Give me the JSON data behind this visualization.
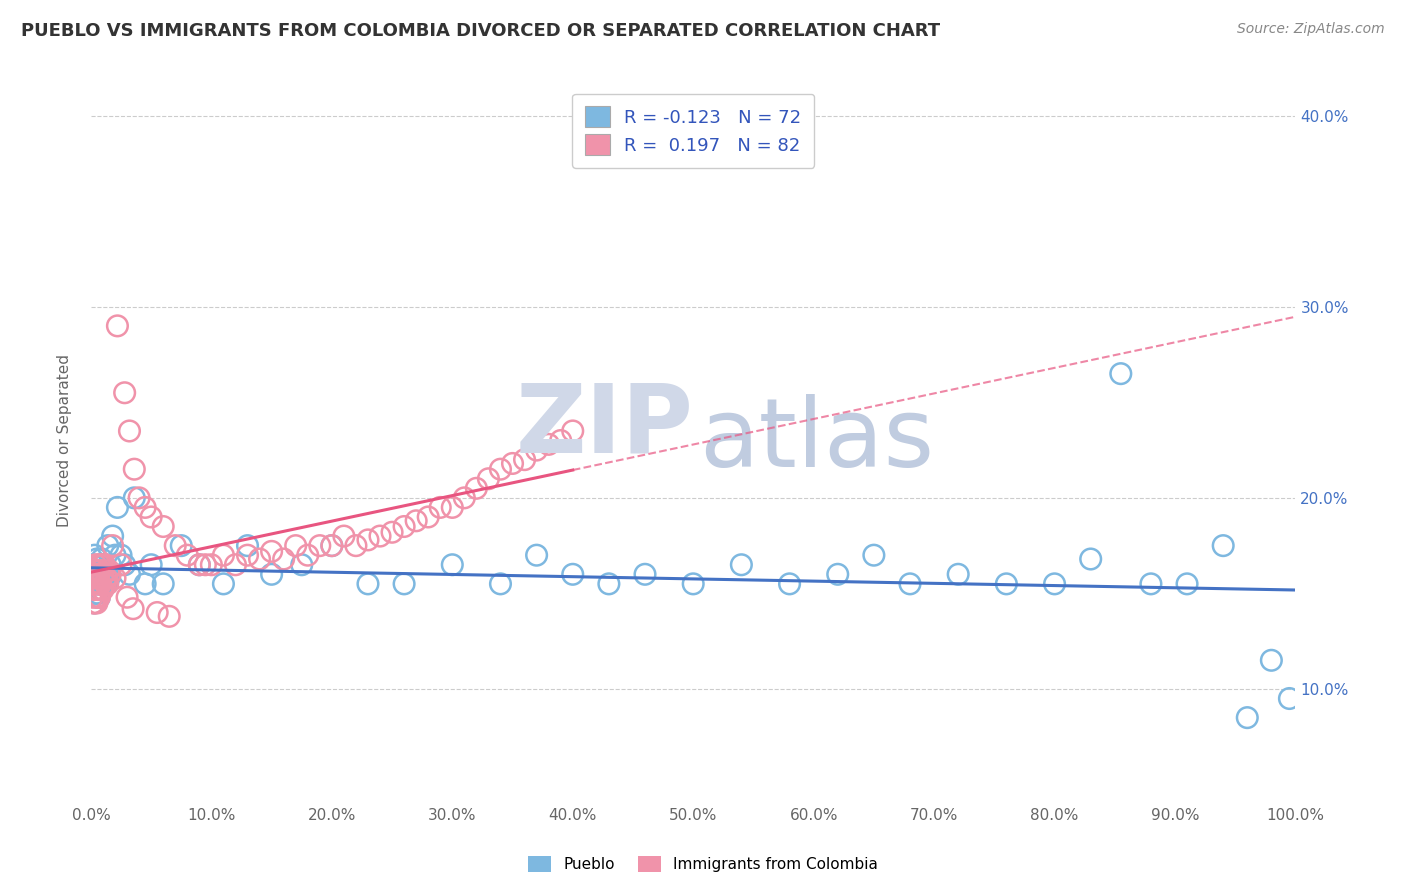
{
  "title": "PUEBLO VS IMMIGRANTS FROM COLOMBIA DIVORCED OR SEPARATED CORRELATION CHART",
  "source": "Source: ZipAtlas.com",
  "ylabel": "Divorced or Separated",
  "xlim": [
    0.0,
    1.0
  ],
  "ylim": [
    0.04,
    0.42
  ],
  "x_ticks": [
    0.0,
    0.1,
    0.2,
    0.3,
    0.4,
    0.5,
    0.6,
    0.7,
    0.8,
    0.9,
    1.0
  ],
  "y_ticks": [
    0.1,
    0.2,
    0.3,
    0.4
  ],
  "y_tick_labels": [
    "10.0%",
    "20.0%",
    "30.0%",
    "40.0%"
  ],
  "x_tick_labels": [
    "0.0%",
    "10.0%",
    "20.0%",
    "30.0%",
    "40.0%",
    "50.0%",
    "60.0%",
    "70.0%",
    "80.0%",
    "90.0%",
    "100.0%"
  ],
  "pueblo_R": -0.123,
  "pueblo_N": 72,
  "colombia_R": 0.197,
  "colombia_N": 82,
  "pueblo_color": "#7eb8e0",
  "colombia_color": "#f093aa",
  "pueblo_line_color": "#4472c4",
  "colombia_line_color": "#e85580",
  "legend_pueblo": "Pueblo",
  "legend_colombia": "Immigrants from Colombia",
  "watermark_zip_color": "#d0d8e8",
  "watermark_atlas_color": "#c0cce0",
  "pueblo_scatter_x": [
    0.001,
    0.002,
    0.002,
    0.003,
    0.003,
    0.003,
    0.004,
    0.004,
    0.004,
    0.005,
    0.005,
    0.005,
    0.006,
    0.006,
    0.006,
    0.007,
    0.007,
    0.007,
    0.008,
    0.008,
    0.009,
    0.009,
    0.01,
    0.01,
    0.011,
    0.012,
    0.013,
    0.014,
    0.015,
    0.016,
    0.018,
    0.02,
    0.022,
    0.025,
    0.028,
    0.032,
    0.036,
    0.045,
    0.05,
    0.06,
    0.075,
    0.09,
    0.11,
    0.13,
    0.15,
    0.175,
    0.2,
    0.23,
    0.26,
    0.3,
    0.34,
    0.37,
    0.4,
    0.43,
    0.46,
    0.5,
    0.54,
    0.58,
    0.62,
    0.65,
    0.68,
    0.72,
    0.76,
    0.8,
    0.83,
    0.855,
    0.88,
    0.91,
    0.94,
    0.96,
    0.98,
    0.995
  ],
  "pueblo_scatter_y": [
    0.165,
    0.16,
    0.155,
    0.17,
    0.158,
    0.145,
    0.162,
    0.155,
    0.15,
    0.168,
    0.155,
    0.148,
    0.162,
    0.158,
    0.15,
    0.165,
    0.155,
    0.148,
    0.16,
    0.152,
    0.168,
    0.155,
    0.162,
    0.155,
    0.165,
    0.155,
    0.16,
    0.175,
    0.158,
    0.165,
    0.18,
    0.17,
    0.195,
    0.17,
    0.165,
    0.16,
    0.2,
    0.155,
    0.165,
    0.155,
    0.175,
    0.165,
    0.155,
    0.175,
    0.16,
    0.165,
    0.175,
    0.155,
    0.155,
    0.165,
    0.155,
    0.17,
    0.16,
    0.155,
    0.16,
    0.155,
    0.165,
    0.155,
    0.16,
    0.17,
    0.155,
    0.16,
    0.155,
    0.155,
    0.168,
    0.265,
    0.155,
    0.155,
    0.175,
    0.085,
    0.115,
    0.095
  ],
  "colombia_scatter_x": [
    0.001,
    0.001,
    0.002,
    0.002,
    0.002,
    0.003,
    0.003,
    0.003,
    0.004,
    0.004,
    0.004,
    0.005,
    0.005,
    0.005,
    0.006,
    0.006,
    0.006,
    0.007,
    0.007,
    0.007,
    0.008,
    0.008,
    0.009,
    0.009,
    0.01,
    0.01,
    0.011,
    0.012,
    0.013,
    0.014,
    0.015,
    0.016,
    0.018,
    0.02,
    0.022,
    0.025,
    0.028,
    0.032,
    0.036,
    0.04,
    0.045,
    0.05,
    0.06,
    0.07,
    0.08,
    0.09,
    0.1,
    0.11,
    0.12,
    0.13,
    0.14,
    0.15,
    0.16,
    0.17,
    0.18,
    0.19,
    0.2,
    0.21,
    0.22,
    0.23,
    0.24,
    0.25,
    0.26,
    0.27,
    0.28,
    0.29,
    0.3,
    0.31,
    0.32,
    0.33,
    0.34,
    0.35,
    0.36,
    0.37,
    0.38,
    0.39,
    0.4,
    0.03,
    0.035,
    0.055,
    0.065,
    0.095
  ],
  "colombia_scatter_y": [
    0.155,
    0.148,
    0.162,
    0.155,
    0.145,
    0.16,
    0.152,
    0.145,
    0.165,
    0.155,
    0.148,
    0.162,
    0.155,
    0.145,
    0.16,
    0.152,
    0.148,
    0.165,
    0.155,
    0.148,
    0.162,
    0.155,
    0.165,
    0.152,
    0.16,
    0.152,
    0.165,
    0.155,
    0.158,
    0.155,
    0.162,
    0.16,
    0.175,
    0.158,
    0.29,
    0.165,
    0.255,
    0.235,
    0.215,
    0.2,
    0.195,
    0.19,
    0.185,
    0.175,
    0.17,
    0.165,
    0.165,
    0.17,
    0.165,
    0.17,
    0.168,
    0.172,
    0.168,
    0.175,
    0.17,
    0.175,
    0.175,
    0.18,
    0.175,
    0.178,
    0.18,
    0.182,
    0.185,
    0.188,
    0.19,
    0.195,
    0.195,
    0.2,
    0.205,
    0.21,
    0.215,
    0.218,
    0.22,
    0.225,
    0.228,
    0.23,
    0.235,
    0.148,
    0.142,
    0.14,
    0.138,
    0.165
  ]
}
